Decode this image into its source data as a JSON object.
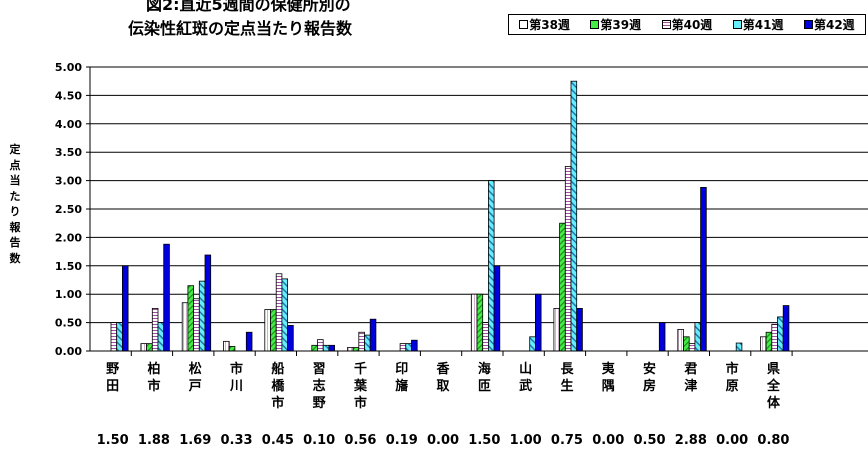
{
  "chart_data": {
    "type": "bar",
    "title": [
      "図2:直近5週間の保健所別の",
      "伝染性紅斑の定点当たり報告数"
    ],
    "ylabel": "定点当たり報告数",
    "ylim": [
      0,
      5.0
    ],
    "yticks": [
      "0.00",
      "0.50",
      "1.00",
      "1.50",
      "2.00",
      "2.50",
      "3.00",
      "3.50",
      "4.00",
      "4.50",
      "5.00"
    ],
    "grid": true,
    "legend_position": "top-right",
    "categories": [
      "野田",
      "柏市",
      "松戸",
      "市川",
      "船橋市",
      "習志野",
      "千葉市",
      "印旛",
      "香取",
      "海匝",
      "山武",
      "長生",
      "夷隅",
      "安房",
      "君津",
      "市原",
      "県全体"
    ],
    "category_values_text": [
      "1.50",
      "1.88",
      "1.69",
      "0.33",
      "0.45",
      "0.10",
      "0.56",
      "0.19",
      "0.00",
      "1.50",
      "1.00",
      "0.75",
      "0.00",
      "0.50",
      "2.88",
      "0.00",
      "0.80"
    ],
    "series": [
      {
        "name": "第38週",
        "values": [
          0.0,
          0.13,
          0.85,
          0.17,
          0.73,
          0.0,
          0.06,
          0.0,
          0.0,
          1.0,
          0.0,
          0.75,
          0.0,
          0.0,
          0.38,
          0.0,
          0.25
        ]
      },
      {
        "name": "第39週",
        "values": [
          0.0,
          0.13,
          1.15,
          0.08,
          0.73,
          0.1,
          0.06,
          0.0,
          0.0,
          1.0,
          0.0,
          2.25,
          0.0,
          0.0,
          0.25,
          0.0,
          0.33
        ]
      },
      {
        "name": "第40週",
        "values": [
          0.5,
          0.75,
          0.92,
          0.0,
          1.36,
          0.2,
          0.33,
          0.13,
          0.0,
          0.5,
          0.0,
          3.25,
          0.0,
          0.0,
          0.13,
          0.0,
          0.47
        ]
      },
      {
        "name": "第41週",
        "values": [
          0.5,
          0.5,
          1.23,
          0.0,
          1.27,
          0.1,
          0.28,
          0.13,
          0.0,
          3.0,
          0.25,
          4.75,
          0.0,
          0.0,
          0.5,
          0.14,
          0.6
        ]
      },
      {
        "name": "第42週",
        "values": [
          1.5,
          1.88,
          1.69,
          0.33,
          0.45,
          0.1,
          0.56,
          0.19,
          0.0,
          1.5,
          1.0,
          0.75,
          0.0,
          0.5,
          2.88,
          0.0,
          0.8
        ]
      }
    ],
    "colors": {
      "week38": "#ffffff",
      "week38_stripe": "#d0b0c8",
      "week39": "#44ee44",
      "week39_stripe": "#228822",
      "week40": "#ffffff",
      "week40_stripe": "#a050a0",
      "week41": "#66eeff",
      "week41_stripe": "#2277aa",
      "week42": "#0000dd"
    }
  }
}
